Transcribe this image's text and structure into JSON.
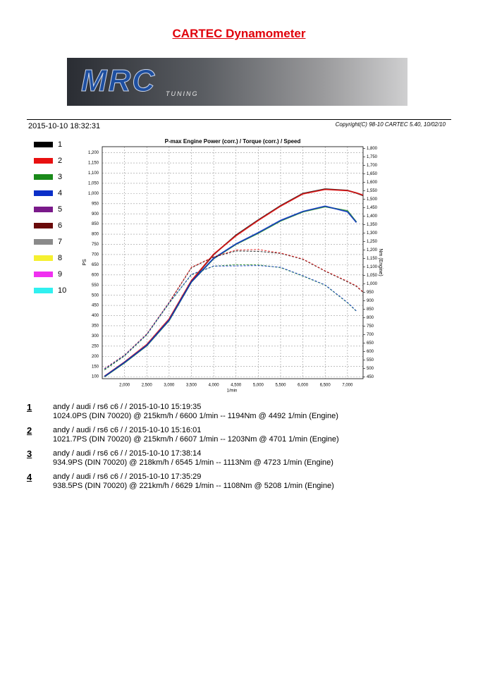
{
  "header": {
    "title": "CARTEC Dynamometer",
    "logo": "MRC",
    "logo_sub": "TUNING",
    "date": "2015-10-10 18:32:31",
    "copyright": "Copyright(C) 98-10 CARTEC 5.40, 10/02/10"
  },
  "legend": [
    {
      "label": "1",
      "color": "#000000"
    },
    {
      "label": "2",
      "color": "#e81010"
    },
    {
      "label": "3",
      "color": "#1a8a1a"
    },
    {
      "label": "4",
      "color": "#0a2fc8"
    },
    {
      "label": "5",
      "color": "#7a1a8a"
    },
    {
      "label": "6",
      "color": "#6a0a0a"
    },
    {
      "label": "7",
      "color": "#8a8a8a"
    },
    {
      "label": "8",
      "color": "#f5f030"
    },
    {
      "label": "9",
      "color": "#f030f0"
    },
    {
      "label": "10",
      "color": "#30f0f0"
    }
  ],
  "chart_data": {
    "type": "line",
    "title": "P-max Engine Power (corr.) / Torque (corr.) / Speed",
    "xlabel": "1/min",
    "ylabel": "PS",
    "y2label": "Nm (Engine)",
    "grid": true,
    "x": [
      1550,
      2000,
      2500,
      3000,
      3500,
      4000,
      4500,
      5000,
      5500,
      6000,
      6500,
      7000,
      7200,
      7350
    ],
    "xlim": [
      1500,
      7350
    ],
    "xticks": [
      {
        "value": 2000,
        "label": "2,000"
      },
      {
        "value": 2500,
        "label": "2,500"
      },
      {
        "value": 3000,
        "label": "3,000"
      },
      {
        "value": 3500,
        "label": "3,500"
      },
      {
        "value": 4000,
        "label": "4,000"
      },
      {
        "value": 4500,
        "label": "4,500"
      },
      {
        "value": 5000,
        "label": "5,000"
      },
      {
        "value": 5500,
        "label": "5,500"
      },
      {
        "value": 6000,
        "label": "6,000"
      },
      {
        "value": 6500,
        "label": "6,500"
      },
      {
        "value": 7000,
        "label": "7,000"
      }
    ],
    "ylim": [
      90,
      1230
    ],
    "yticks": [
      100,
      150,
      200,
      250,
      300,
      350,
      400,
      450,
      500,
      550,
      600,
      650,
      700,
      750,
      800,
      850,
      900,
      950,
      {
        "value": 1000,
        "label": "1,000"
      },
      {
        "value": 1050,
        "label": "1,050"
      },
      {
        "value": 1100,
        "label": "1,100"
      },
      {
        "value": 1150,
        "label": "1,150"
      },
      {
        "value": 1200,
        "label": "1,200"
      }
    ],
    "y2lim": [
      440,
      1810
    ],
    "y2ticks": [
      450,
      500,
      550,
      600,
      650,
      700,
      750,
      800,
      850,
      900,
      950,
      {
        "value": 1000,
        "label": "1,000"
      },
      {
        "value": 1050,
        "label": "1,050"
      },
      {
        "value": 1100,
        "label": "1,100"
      },
      {
        "value": 1150,
        "label": "1,150"
      },
      {
        "value": 1200,
        "label": "1,200"
      },
      {
        "value": 1250,
        "label": "1,250"
      },
      {
        "value": 1300,
        "label": "1,300"
      },
      {
        "value": 1350,
        "label": "1,350"
      },
      {
        "value": 1400,
        "label": "1,400"
      },
      {
        "value": 1450,
        "label": "1,450"
      },
      {
        "value": 1500,
        "label": "1,500"
      },
      {
        "value": 1550,
        "label": "1,550"
      },
      {
        "value": 1600,
        "label": "1,600"
      },
      {
        "value": 1650,
        "label": "1,650"
      },
      {
        "value": 1700,
        "label": "1,700"
      },
      {
        "value": 1750,
        "label": "1,750"
      },
      {
        "value": 1800,
        "label": "1,800"
      }
    ],
    "series": [
      {
        "color": "#000000",
        "style": "solid",
        "values": [
          100,
          170,
          255,
          380,
          570,
          700,
          795,
          870,
          940,
          1000,
          1022,
          1015,
          1002,
          990
        ]
      },
      {
        "color": "#e81010",
        "style": "solid",
        "values": [
          102,
          172,
          258,
          384,
          572,
          702,
          792,
          868,
          938,
          998,
          1020,
          1014,
          1003,
          992
        ]
      },
      {
        "color": "#1a8a1a",
        "style": "solid",
        "values": [
          100,
          168,
          252,
          376,
          565,
          680,
          750,
          805,
          865,
          910,
          935,
          915,
          860,
          null
        ]
      },
      {
        "color": "#0a2fc8",
        "style": "solid",
        "values": [
          101,
          170,
          254,
          378,
          566,
          682,
          752,
          808,
          868,
          912,
          938,
          910,
          858,
          null
        ]
      },
      {
        "color": "#000000",
        "style": "dashed",
        "axis": "y2",
        "values": [
          492,
          575,
          700,
          888,
          1095,
          1158,
          1194,
          1192,
          1180,
          1145,
          1075,
          1012,
          985,
          950
        ]
      },
      {
        "color": "#e81010",
        "style": "dashed",
        "axis": "y2",
        "values": [
          500,
          580,
          705,
          892,
          1098,
          1160,
          1200,
          1203,
          1182,
          1147,
          1077,
          1015,
          988,
          952
        ]
      },
      {
        "color": "#1a8a1a",
        "style": "dashed",
        "axis": "y2",
        "values": [
          492,
          575,
          700,
          885,
          1054,
          1104,
          1113,
          1112,
          1096,
          1046,
          992,
          888,
          838,
          null
        ]
      },
      {
        "color": "#0a2fc8",
        "style": "dashed",
        "axis": "y2",
        "values": [
          498,
          578,
          702,
          888,
          1056,
          1105,
          1106,
          1108,
          1098,
          1048,
          994,
          890,
          840,
          null
        ]
      }
    ]
  },
  "runs": [
    {
      "number": "1",
      "line1": "andy / audi / rs6 c6 /  / 2015-10-10 15:19:35",
      "line2": "1024.0PS (DIN 70020) @ 215km/h / 6600 1/min -- 1194Nm @ 4492 1/min (Engine)"
    },
    {
      "number": "2",
      "line1": "andy / audi / rs6 c6 /  / 2015-10-10 15:16:01",
      "line2": "1021.7PS (DIN 70020) @ 215km/h / 6607 1/min -- 1203Nm @ 4701 1/min (Engine)"
    },
    {
      "number": "3",
      "line1": "andy / audi / rs6 c6 /  / 2015-10-10 17:38:14",
      "line2": "934.9PS (DIN 70020) @ 218km/h / 6545 1/min -- 1113Nm @ 4723 1/min (Engine)"
    },
    {
      "number": "4",
      "line1": "andy / audi / rs6 c6 /  / 2015-10-10 17:35:29",
      "line2": "938.5PS (DIN 70020) @ 221km/h / 6629 1/min -- 1108Nm @ 5208 1/min (Engine)"
    }
  ]
}
